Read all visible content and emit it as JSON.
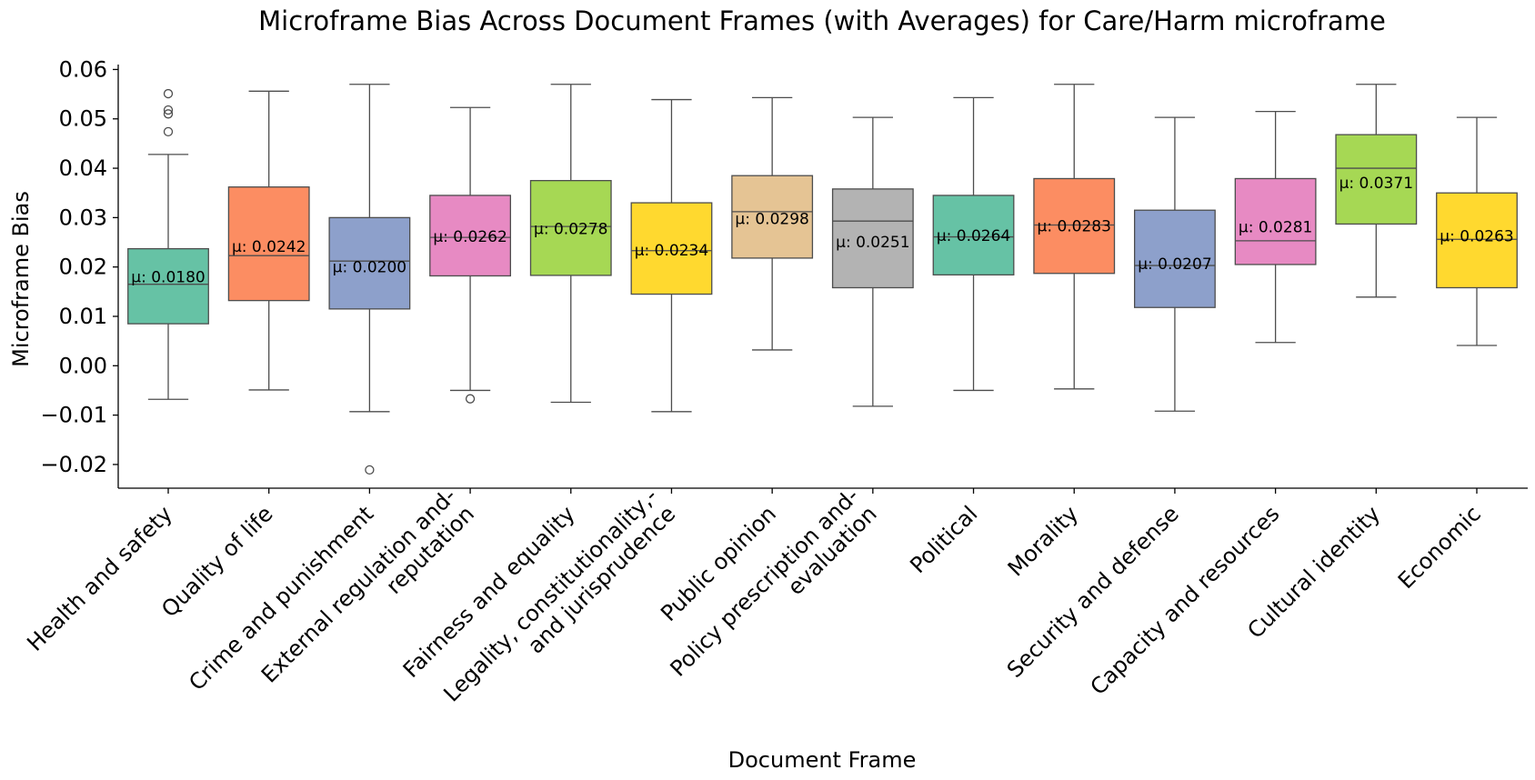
{
  "chart_data": {
    "type": "box",
    "title": "Microframe Bias Across Document Frames (with Averages) for Care/Harm microframe",
    "xlabel": "Document Frame",
    "ylabel": "Microframe Bias",
    "ylim": [
      -0.0248,
      0.061
    ],
    "yticks": [
      -0.02,
      -0.01,
      0.0,
      0.01,
      0.02,
      0.03,
      0.04,
      0.05,
      0.06
    ],
    "ytick_labels": [
      "−0.02",
      "−0.01",
      "0.00",
      "0.01",
      "0.02",
      "0.03",
      "0.04",
      "0.05",
      "0.06"
    ],
    "grid": false,
    "categories": [
      {
        "label_lines": [
          "Health and safety"
        ],
        "color": "#66c2a5",
        "q1": 0.0085,
        "median": 0.0165,
        "q3": 0.0237,
        "whisker_low": -0.0068,
        "whisker_high": 0.0428,
        "outliers": [
          0.0551,
          0.0518,
          0.051,
          0.0474
        ],
        "mean_label": "μ: 0.0180",
        "mean": 0.018
      },
      {
        "label_lines": [
          "Quality of life"
        ],
        "color": "#fc8d62",
        "q1": 0.0132,
        "median": 0.0223,
        "q3": 0.0362,
        "whisker_low": -0.0049,
        "whisker_high": 0.0556,
        "outliers": [],
        "mean_label": "μ: 0.0242",
        "mean": 0.0242
      },
      {
        "label_lines": [
          "Crime and punishment"
        ],
        "color": "#8da0cb",
        "q1": 0.0115,
        "median": 0.0212,
        "q3": 0.03,
        "whisker_low": -0.0093,
        "whisker_high": 0.057,
        "outliers": [
          -0.0211
        ],
        "mean_label": "μ: 0.0200",
        "mean": 0.02
      },
      {
        "label_lines": [
          "External regulation and-",
          "reputation"
        ],
        "color": "#e78ac3",
        "q1": 0.0182,
        "median": 0.026,
        "q3": 0.0345,
        "whisker_low": -0.005,
        "whisker_high": 0.0523,
        "outliers": [
          -0.0067
        ],
        "mean_label": "μ: 0.0262",
        "mean": 0.0262
      },
      {
        "label_lines": [
          "Fairness and equality"
        ],
        "color": "#a6d854",
        "q1": 0.0183,
        "median": 0.0282,
        "q3": 0.0375,
        "whisker_low": -0.0074,
        "whisker_high": 0.057,
        "outliers": [],
        "mean_label": "μ: 0.0278",
        "mean": 0.0278
      },
      {
        "label_lines": [
          "Legality, constitutionality,-",
          "and jurisprudence"
        ],
        "color": "#ffd92f",
        "q1": 0.0145,
        "median": 0.0233,
        "q3": 0.033,
        "whisker_low": -0.0093,
        "whisker_high": 0.0539,
        "outliers": [],
        "mean_label": "μ: 0.0234",
        "mean": 0.0234
      },
      {
        "label_lines": [
          "Public opinion"
        ],
        "color": "#e5c494",
        "q1": 0.0218,
        "median": 0.0312,
        "q3": 0.0385,
        "whisker_low": 0.0032,
        "whisker_high": 0.0543,
        "outliers": [],
        "mean_label": "μ: 0.0298",
        "mean": 0.0298
      },
      {
        "label_lines": [
          "Policy prescription and-",
          "evaluation"
        ],
        "color": "#b3b3b3",
        "q1": 0.0158,
        "median": 0.0293,
        "q3": 0.0358,
        "whisker_low": -0.0082,
        "whisker_high": 0.0503,
        "outliers": [],
        "mean_label": "μ: 0.0251",
        "mean": 0.0251
      },
      {
        "label_lines": [
          "Political"
        ],
        "color": "#66c2a5",
        "q1": 0.0184,
        "median": 0.0261,
        "q3": 0.0345,
        "whisker_low": -0.005,
        "whisker_high": 0.0543,
        "outliers": [],
        "mean_label": "μ: 0.0264",
        "mean": 0.0264
      },
      {
        "label_lines": [
          "Morality"
        ],
        "color": "#fc8d62",
        "q1": 0.0187,
        "median": 0.0285,
        "q3": 0.0379,
        "whisker_low": -0.0047,
        "whisker_high": 0.057,
        "outliers": [],
        "mean_label": "μ: 0.0283",
        "mean": 0.0283
      },
      {
        "label_lines": [
          "Security and defense"
        ],
        "color": "#8da0cb",
        "q1": 0.0118,
        "median": 0.0203,
        "q3": 0.0315,
        "whisker_low": -0.0092,
        "whisker_high": 0.0503,
        "outliers": [],
        "mean_label": "μ: 0.0207",
        "mean": 0.0207
      },
      {
        "label_lines": [
          "Capacity and resources"
        ],
        "color": "#e78ac3",
        "q1": 0.0205,
        "median": 0.0253,
        "q3": 0.0379,
        "whisker_low": 0.0047,
        "whisker_high": 0.0515,
        "outliers": [],
        "mean_label": "μ: 0.0281",
        "mean": 0.0281
      },
      {
        "label_lines": [
          "Cultural identity"
        ],
        "color": "#a6d854",
        "q1": 0.0287,
        "median": 0.04,
        "q3": 0.0468,
        "whisker_low": 0.0139,
        "whisker_high": 0.057,
        "outliers": [],
        "mean_label": "μ: 0.0371",
        "mean": 0.0371
      },
      {
        "label_lines": [
          "Economic"
        ],
        "color": "#ffd92f",
        "q1": 0.0158,
        "median": 0.0256,
        "q3": 0.035,
        "whisker_low": 0.0041,
        "whisker_high": 0.0503,
        "outliers": [],
        "mean_label": "μ: 0.0263",
        "mean": 0.0263
      }
    ]
  }
}
